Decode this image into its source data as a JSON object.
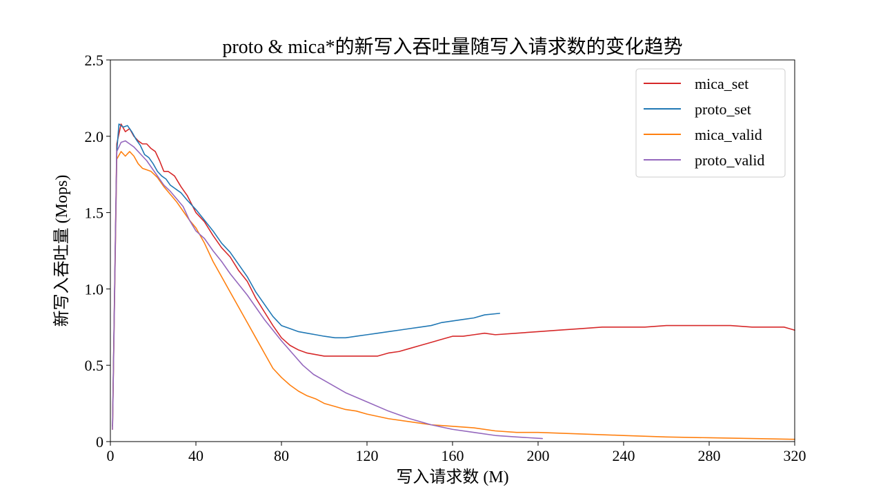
{
  "chart_data": {
    "type": "line",
    "title": "proto & mica*的新写入吞吐量随写入请求数的变化趋势",
    "xlabel": "写入请求数 (M)",
    "ylabel": "新写入吞吐量 (Mops)",
    "xlim": [
      0,
      320
    ],
    "ylim": [
      0,
      2.5
    ],
    "xticks": [
      "0",
      "40",
      "80",
      "120",
      "160",
      "200",
      "240",
      "280",
      "320"
    ],
    "yticks": [
      "0",
      "0.5",
      "1.0",
      "1.5",
      "2.0",
      "2.5"
    ],
    "grid": false,
    "legend_position": "top-right",
    "series": [
      {
        "name": "mica_set",
        "color": "#d62728",
        "points": [
          [
            1,
            0.1
          ],
          [
            3,
            1.95
          ],
          [
            5,
            2.08
          ],
          [
            7,
            2.03
          ],
          [
            9,
            2.05
          ],
          [
            11,
            2.0
          ],
          [
            13,
            1.97
          ],
          [
            15,
            1.95
          ],
          [
            17,
            1.95
          ],
          [
            19,
            1.92
          ],
          [
            21,
            1.9
          ],
          [
            23,
            1.84
          ],
          [
            25,
            1.77
          ],
          [
            27,
            1.77
          ],
          [
            30,
            1.74
          ],
          [
            33,
            1.67
          ],
          [
            36,
            1.61
          ],
          [
            40,
            1.5
          ],
          [
            44,
            1.44
          ],
          [
            48,
            1.35
          ],
          [
            52,
            1.27
          ],
          [
            56,
            1.21
          ],
          [
            60,
            1.12
          ],
          [
            64,
            1.05
          ],
          [
            68,
            0.94
          ],
          [
            72,
            0.85
          ],
          [
            76,
            0.76
          ],
          [
            80,
            0.68
          ],
          [
            84,
            0.63
          ],
          [
            88,
            0.6
          ],
          [
            92,
            0.58
          ],
          [
            96,
            0.57
          ],
          [
            100,
            0.56
          ],
          [
            105,
            0.56
          ],
          [
            110,
            0.56
          ],
          [
            115,
            0.56
          ],
          [
            120,
            0.56
          ],
          [
            125,
            0.56
          ],
          [
            130,
            0.58
          ],
          [
            135,
            0.59
          ],
          [
            140,
            0.61
          ],
          [
            145,
            0.63
          ],
          [
            150,
            0.65
          ],
          [
            155,
            0.67
          ],
          [
            160,
            0.69
          ],
          [
            165,
            0.69
          ],
          [
            170,
            0.7
          ],
          [
            175,
            0.71
          ],
          [
            180,
            0.7
          ],
          [
            190,
            0.71
          ],
          [
            200,
            0.72
          ],
          [
            210,
            0.73
          ],
          [
            220,
            0.74
          ],
          [
            230,
            0.75
          ],
          [
            240,
            0.75
          ],
          [
            250,
            0.75
          ],
          [
            260,
            0.76
          ],
          [
            270,
            0.76
          ],
          [
            280,
            0.76
          ],
          [
            290,
            0.76
          ],
          [
            300,
            0.75
          ],
          [
            310,
            0.75
          ],
          [
            315,
            0.75
          ],
          [
            320,
            0.73
          ]
        ]
      },
      {
        "name": "proto_set",
        "color": "#1f77b4",
        "points": [
          [
            1,
            0.1
          ],
          [
            3,
            1.9
          ],
          [
            4,
            2.08
          ],
          [
            6,
            2.06
          ],
          [
            8,
            2.07
          ],
          [
            10,
            2.03
          ],
          [
            12,
            1.98
          ],
          [
            14,
            1.94
          ],
          [
            16,
            1.88
          ],
          [
            18,
            1.86
          ],
          [
            20,
            1.82
          ],
          [
            22,
            1.77
          ],
          [
            24,
            1.74
          ],
          [
            26,
            1.72
          ],
          [
            28,
            1.68
          ],
          [
            30,
            1.66
          ],
          [
            33,
            1.63
          ],
          [
            36,
            1.58
          ],
          [
            40,
            1.52
          ],
          [
            44,
            1.45
          ],
          [
            48,
            1.38
          ],
          [
            52,
            1.3
          ],
          [
            56,
            1.24
          ],
          [
            60,
            1.16
          ],
          [
            64,
            1.08
          ],
          [
            68,
            0.98
          ],
          [
            72,
            0.9
          ],
          [
            76,
            0.82
          ],
          [
            80,
            0.76
          ],
          [
            84,
            0.74
          ],
          [
            88,
            0.72
          ],
          [
            92,
            0.71
          ],
          [
            96,
            0.7
          ],
          [
            100,
            0.69
          ],
          [
            105,
            0.68
          ],
          [
            110,
            0.68
          ],
          [
            115,
            0.69
          ],
          [
            120,
            0.7
          ],
          [
            125,
            0.71
          ],
          [
            130,
            0.72
          ],
          [
            135,
            0.73
          ],
          [
            140,
            0.74
          ],
          [
            145,
            0.75
          ],
          [
            150,
            0.76
          ],
          [
            155,
            0.78
          ],
          [
            160,
            0.79
          ],
          [
            165,
            0.8
          ],
          [
            170,
            0.81
          ],
          [
            175,
            0.83
          ],
          [
            182,
            0.84
          ]
        ]
      },
      {
        "name": "mica_valid",
        "color": "#ff7f0e",
        "points": [
          [
            1,
            0.08
          ],
          [
            3,
            1.85
          ],
          [
            5,
            1.9
          ],
          [
            7,
            1.87
          ],
          [
            9,
            1.9
          ],
          [
            11,
            1.87
          ],
          [
            13,
            1.82
          ],
          [
            15,
            1.79
          ],
          [
            17,
            1.78
          ],
          [
            19,
            1.77
          ],
          [
            22,
            1.73
          ],
          [
            25,
            1.67
          ],
          [
            28,
            1.62
          ],
          [
            31,
            1.57
          ],
          [
            34,
            1.51
          ],
          [
            37,
            1.45
          ],
          [
            40,
            1.4
          ],
          [
            44,
            1.3
          ],
          [
            48,
            1.18
          ],
          [
            52,
            1.08
          ],
          [
            56,
            0.98
          ],
          [
            60,
            0.88
          ],
          [
            64,
            0.78
          ],
          [
            68,
            0.68
          ],
          [
            72,
            0.58
          ],
          [
            76,
            0.48
          ],
          [
            80,
            0.42
          ],
          [
            84,
            0.37
          ],
          [
            88,
            0.33
          ],
          [
            92,
            0.3
          ],
          [
            96,
            0.28
          ],
          [
            100,
            0.25
          ],
          [
            105,
            0.23
          ],
          [
            110,
            0.21
          ],
          [
            115,
            0.2
          ],
          [
            120,
            0.18
          ],
          [
            130,
            0.15
          ],
          [
            140,
            0.13
          ],
          [
            150,
            0.11
          ],
          [
            160,
            0.1
          ],
          [
            170,
            0.09
          ],
          [
            180,
            0.07
          ],
          [
            190,
            0.06
          ],
          [
            200,
            0.06
          ],
          [
            220,
            0.05
          ],
          [
            240,
            0.04
          ],
          [
            260,
            0.03
          ],
          [
            280,
            0.025
          ],
          [
            300,
            0.02
          ],
          [
            320,
            0.015
          ]
        ]
      },
      {
        "name": "proto_valid",
        "color": "#9467bd",
        "points": [
          [
            1,
            0.08
          ],
          [
            3,
            1.9
          ],
          [
            5,
            1.96
          ],
          [
            7,
            1.97
          ],
          [
            9,
            1.95
          ],
          [
            11,
            1.93
          ],
          [
            13,
            1.9
          ],
          [
            15,
            1.87
          ],
          [
            17,
            1.84
          ],
          [
            19,
            1.8
          ],
          [
            21,
            1.76
          ],
          [
            23,
            1.72
          ],
          [
            25,
            1.68
          ],
          [
            28,
            1.64
          ],
          [
            31,
            1.59
          ],
          [
            34,
            1.54
          ],
          [
            37,
            1.45
          ],
          [
            40,
            1.38
          ],
          [
            44,
            1.33
          ],
          [
            48,
            1.25
          ],
          [
            52,
            1.18
          ],
          [
            56,
            1.1
          ],
          [
            60,
            1.03
          ],
          [
            64,
            0.96
          ],
          [
            68,
            0.88
          ],
          [
            72,
            0.8
          ],
          [
            76,
            0.73
          ],
          [
            80,
            0.66
          ],
          [
            85,
            0.58
          ],
          [
            90,
            0.5
          ],
          [
            95,
            0.44
          ],
          [
            100,
            0.4
          ],
          [
            105,
            0.36
          ],
          [
            110,
            0.32
          ],
          [
            115,
            0.29
          ],
          [
            120,
            0.26
          ],
          [
            130,
            0.2
          ],
          [
            140,
            0.15
          ],
          [
            150,
            0.11
          ],
          [
            160,
            0.08
          ],
          [
            170,
            0.06
          ],
          [
            180,
            0.04
          ],
          [
            190,
            0.03
          ],
          [
            202,
            0.02
          ]
        ]
      }
    ]
  }
}
